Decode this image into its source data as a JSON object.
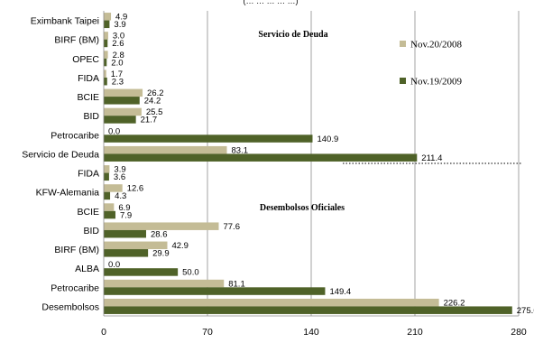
{
  "chart_data": {
    "type": "bar",
    "orientation": "horizontal",
    "header_fragment": "(… … … … …)",
    "xlim": [
      0,
      280
    ],
    "x_ticks": [
      "0",
      "70",
      "140",
      "210",
      "280"
    ],
    "grid": "vertical",
    "legend_position": "top-right",
    "section_labels": [
      "Servicio de Deuda",
      "Desembolsos Oficiales"
    ],
    "series": [
      {
        "name": "Nov.20/2008",
        "color": "#c4bc96"
      },
      {
        "name": "Nov.19/2009",
        "color": "#4f6228"
      }
    ],
    "rows": [
      {
        "label": "Eximbank Taipei",
        "values": [
          4.9,
          3.9
        ],
        "value_labels": [
          "4.9",
          "3.9"
        ]
      },
      {
        "label": "BIRF (BM)",
        "values": [
          3.0,
          2.6
        ],
        "value_labels": [
          "3.0",
          "2.6"
        ]
      },
      {
        "label": "OPEC",
        "values": [
          2.8,
          2.0
        ],
        "value_labels": [
          "2.8",
          "2.0"
        ]
      },
      {
        "label": "FIDA",
        "values": [
          1.7,
          2.3
        ],
        "value_labels": [
          "1.7",
          "2.3"
        ]
      },
      {
        "label": "BCIE",
        "values": [
          26.2,
          24.2
        ],
        "value_labels": [
          "26.2",
          "24.2"
        ]
      },
      {
        "label": "BID",
        "values": [
          25.5,
          21.7
        ],
        "value_labels": [
          "25.5",
          "21.7"
        ]
      },
      {
        "label": "Petrocaribe",
        "values": [
          0.0,
          140.9
        ],
        "value_labels": [
          "0.0",
          "140.9"
        ]
      },
      {
        "label": "Servicio de Deuda",
        "values": [
          83.1,
          211.4
        ],
        "value_labels": [
          "83.1",
          "211.4"
        ]
      },
      {
        "label": "FIDA",
        "values": [
          3.9,
          3.6
        ],
        "value_labels": [
          "3.9",
          "3.6"
        ]
      },
      {
        "label": "KFW-Alemania",
        "values": [
          12.6,
          4.3
        ],
        "value_labels": [
          "12.6",
          "4.3"
        ]
      },
      {
        "label": "BCIE",
        "values": [
          6.9,
          7.9
        ],
        "value_labels": [
          "6.9",
          "7.9"
        ]
      },
      {
        "label": "BID",
        "values": [
          77.6,
          28.6
        ],
        "value_labels": [
          "77.6",
          "28.6"
        ]
      },
      {
        "label": "BIRF (BM)",
        "values": [
          42.9,
          29.9
        ],
        "value_labels": [
          "42.9",
          "29.9"
        ]
      },
      {
        "label": "ALBA",
        "values": [
          0.0,
          50.0
        ],
        "value_labels": [
          "0.0",
          "50.0"
        ]
      },
      {
        "label": "Petrocaribe",
        "values": [
          81.1,
          149.4
        ],
        "value_labels": [
          "81.1",
          "149.4"
        ]
      },
      {
        "label": "Desembolsos",
        "values": [
          226.2,
          275.6
        ],
        "value_labels": [
          "226.2",
          "275.6"
        ]
      }
    ]
  }
}
